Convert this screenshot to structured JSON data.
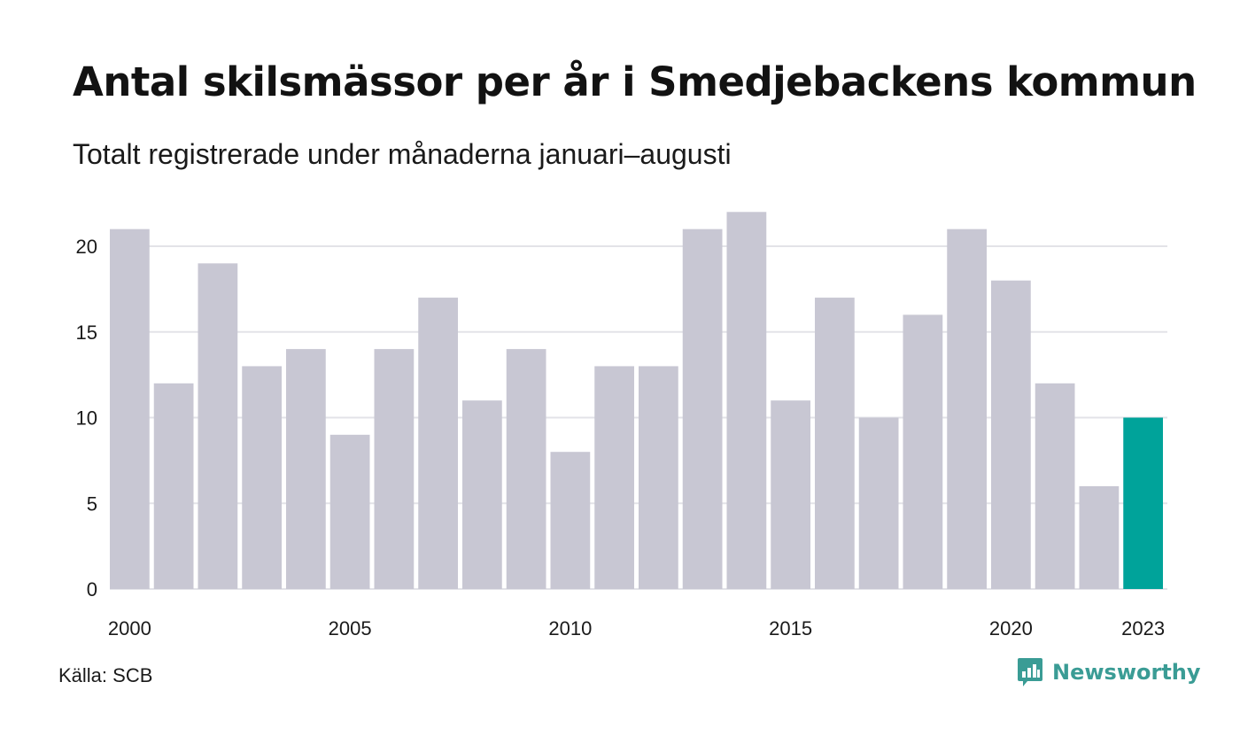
{
  "header": {
    "title": "Antal skilsmässor per år i Smedjebackens kommun",
    "subtitle": "Totalt registrerade under månaderna januari–augusti"
  },
  "chart_data": {
    "type": "bar",
    "categories": [
      "2000",
      "2001",
      "2002",
      "2003",
      "2004",
      "2005",
      "2006",
      "2007",
      "2008",
      "2009",
      "2010",
      "2011",
      "2012",
      "2013",
      "2014",
      "2015",
      "2016",
      "2017",
      "2018",
      "2019",
      "2020",
      "2021",
      "2022",
      "2023"
    ],
    "values": [
      21,
      12,
      19,
      13,
      14,
      9,
      14,
      17,
      11,
      14,
      8,
      13,
      13,
      21,
      22,
      11,
      17,
      10,
      16,
      21,
      18,
      12,
      6,
      10
    ],
    "x_tick_labels": [
      "2000",
      "2005",
      "2010",
      "2015",
      "2020",
      "2023"
    ],
    "y_ticks": [
      0,
      5,
      10,
      15,
      20
    ],
    "ylim": [
      0,
      22
    ],
    "grid": true,
    "bar_color": "#c8c7d3",
    "highlight_color": "#00a39a",
    "highlight_category": "2023"
  },
  "footer": {
    "source": "Källa: SCB",
    "brand": "Newsworthy",
    "brand_icon": "newsworthy-logo-icon",
    "brand_color": "#3a9c95"
  }
}
